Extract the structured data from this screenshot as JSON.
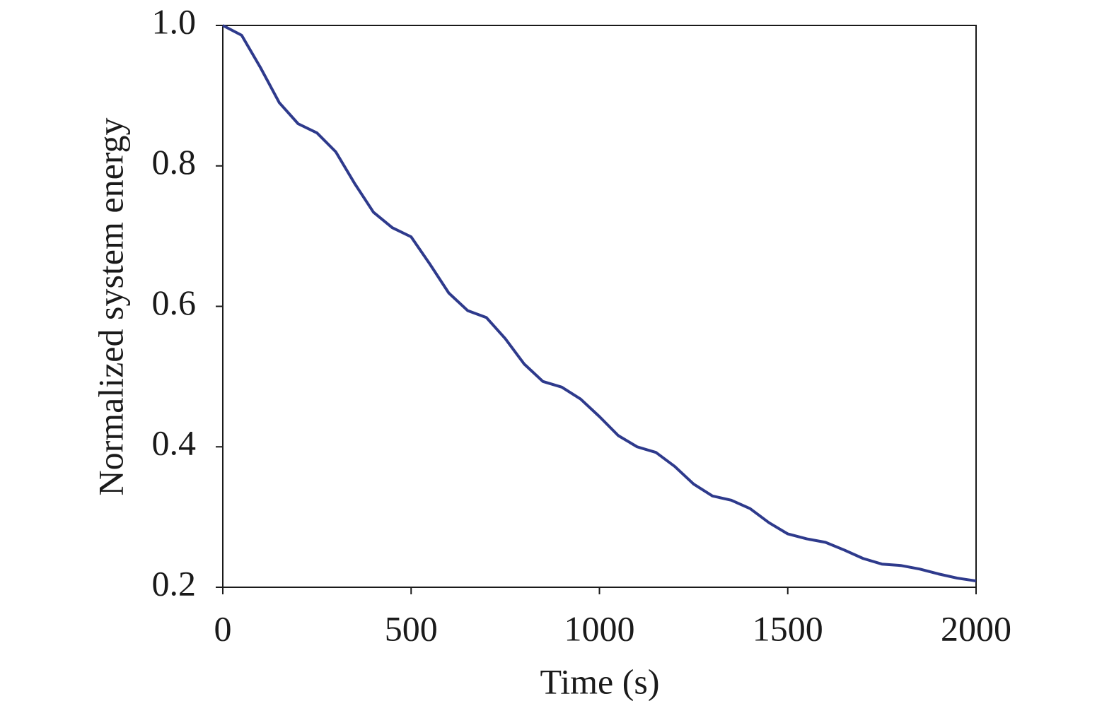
{
  "chart_data": {
    "type": "line",
    "xlabel": "Time (s)",
    "ylabel": "Normalized system energy",
    "x": [
      0,
      50,
      100,
      150,
      200,
      250,
      300,
      350,
      400,
      450,
      500,
      550,
      600,
      650,
      700,
      750,
      800,
      850,
      900,
      950,
      1000,
      1050,
      1100,
      1150,
      1200,
      1250,
      1300,
      1350,
      1400,
      1450,
      1500,
      1550,
      1600,
      1650,
      1700,
      1750,
      1800,
      1850,
      1900,
      1950,
      2000
    ],
    "series": [
      {
        "name": "Normalized system energy",
        "color": "#2e3a8c",
        "values": [
          1.0,
          0.986,
          0.94,
          0.89,
          0.86,
          0.847,
          0.82,
          0.775,
          0.734,
          0.712,
          0.699,
          0.66,
          0.619,
          0.594,
          0.584,
          0.554,
          0.518,
          0.493,
          0.485,
          0.468,
          0.443,
          0.416,
          0.4,
          0.392,
          0.372,
          0.347,
          0.33,
          0.324,
          0.312,
          0.292,
          0.276,
          0.269,
          0.264,
          0.253,
          0.241,
          0.233,
          0.231,
          0.226,
          0.219,
          0.213,
          0.209
        ]
      }
    ],
    "xlim": [
      0,
      2000
    ],
    "xticks": [
      0,
      500,
      1000,
      1500,
      2000
    ],
    "ylim": [
      0.2,
      1
    ],
    "yticks": [
      0.2,
      0.4,
      0.6,
      0.8,
      {
        "value": 1,
        "label": "1.0"
      }
    ],
    "grid": false
  }
}
